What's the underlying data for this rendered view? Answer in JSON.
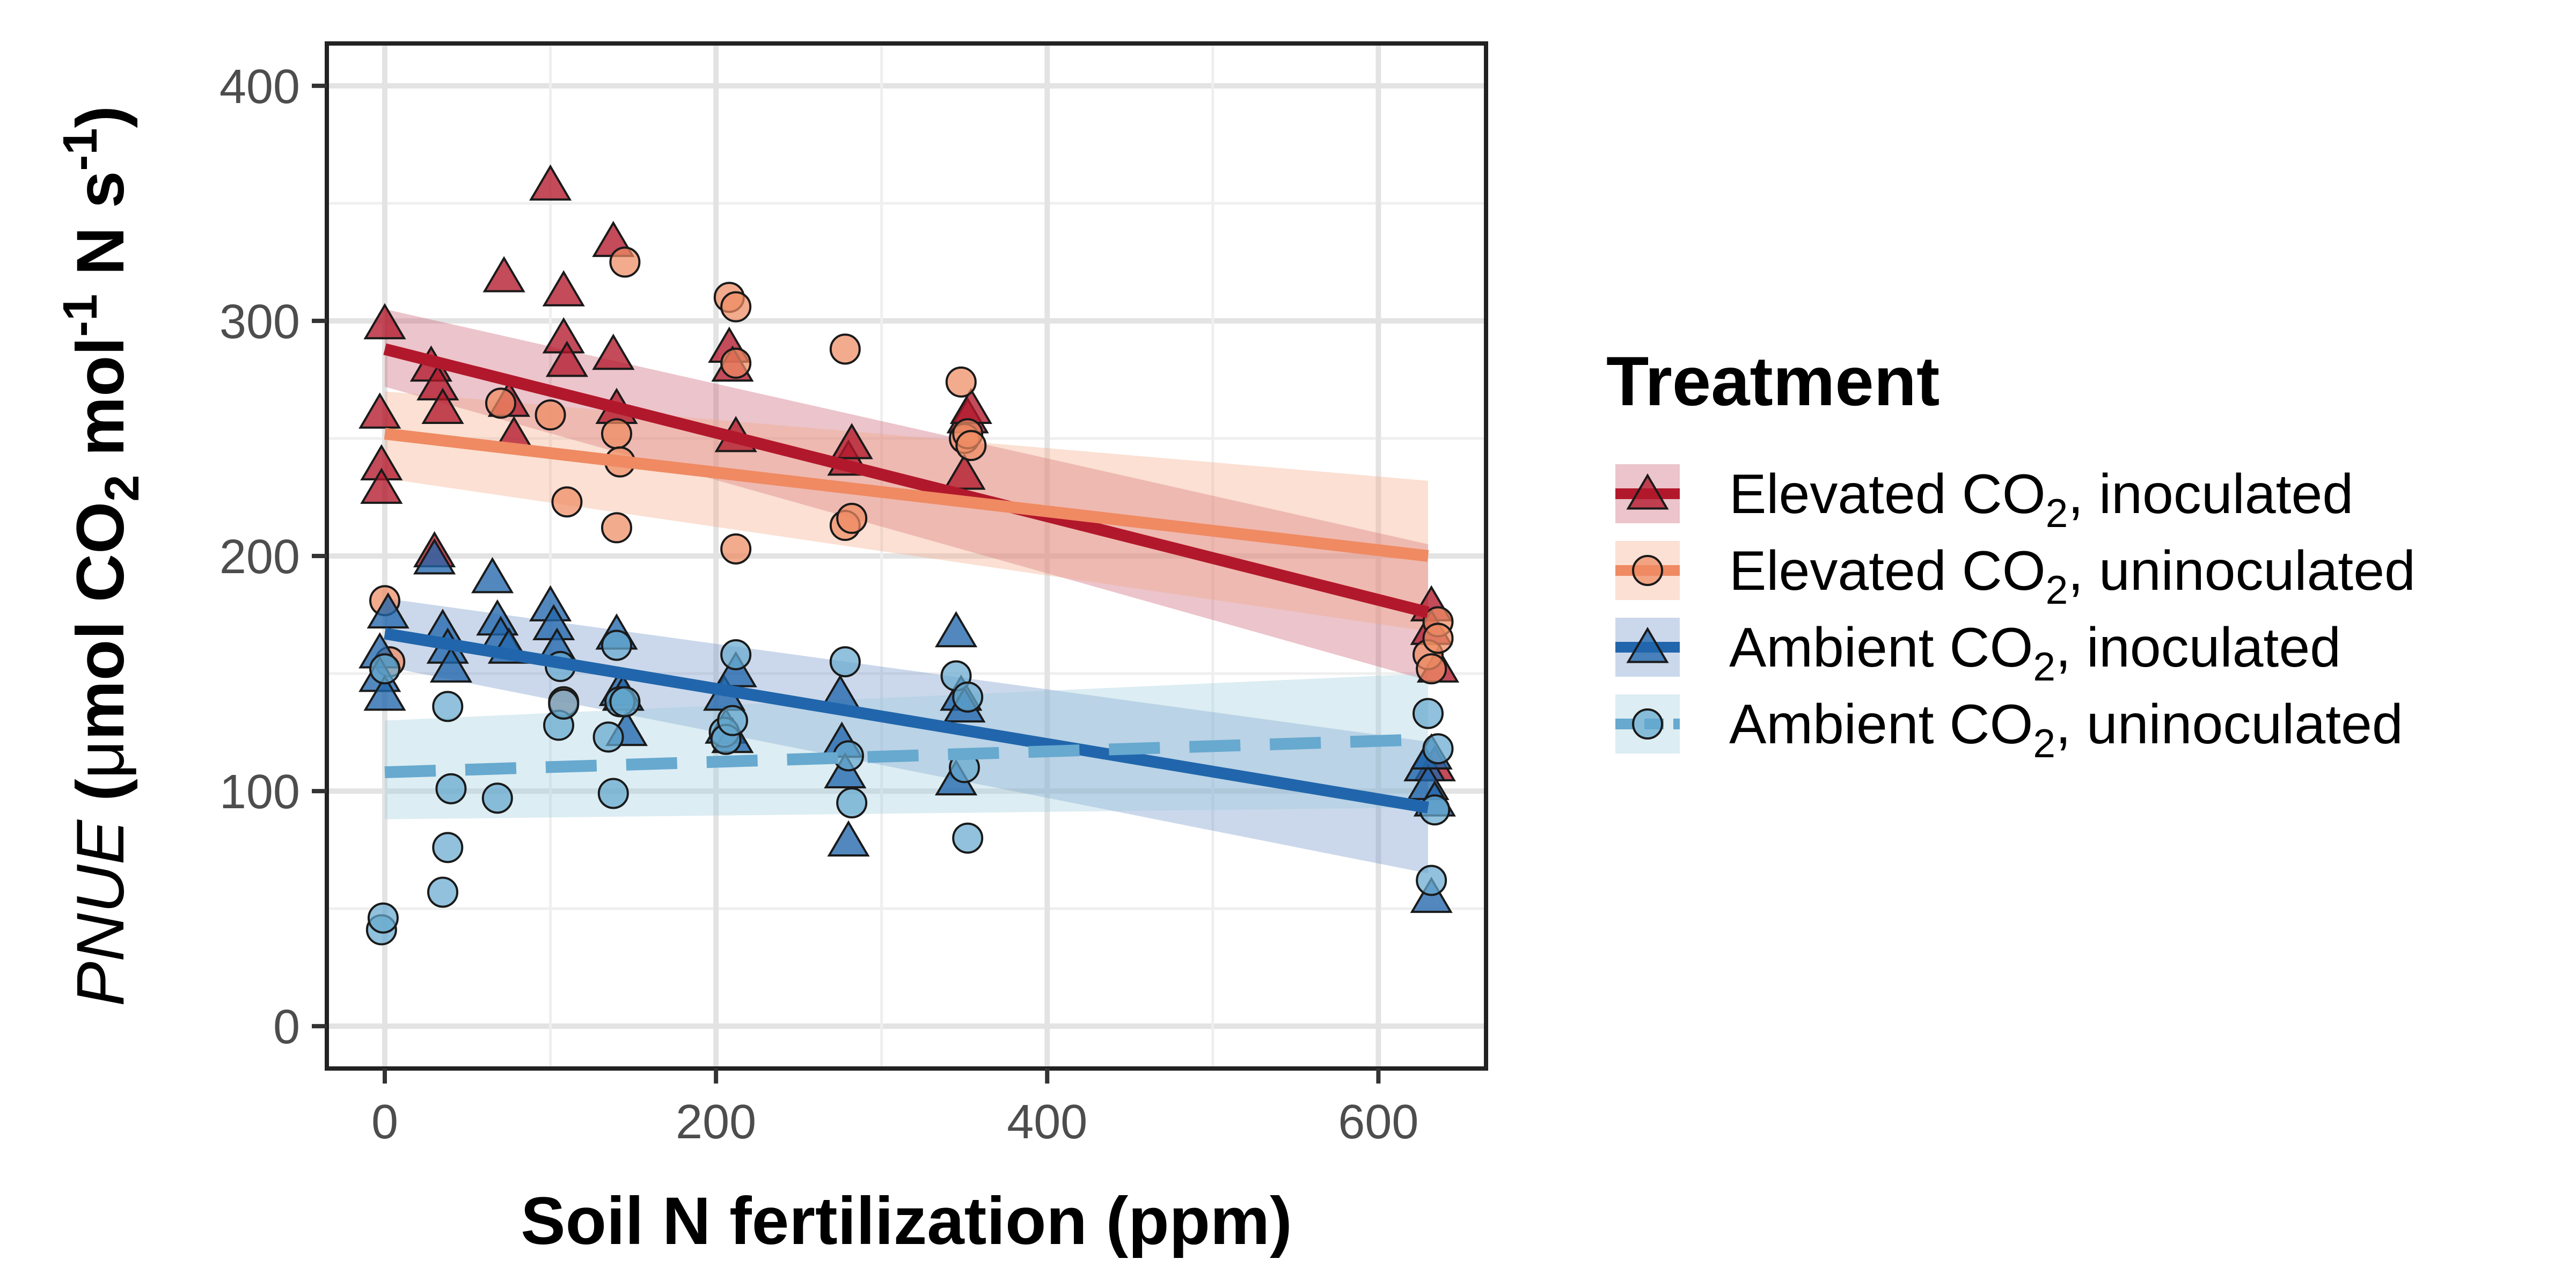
{
  "chart_data": {
    "type": "scatter",
    "xlabel": "Soil N fertilization (ppm)",
    "ylabel": {
      "italic": "PNUE",
      "open": "(",
      "mu": "μ",
      "mol": "mol CO",
      "sub": "2",
      "mol2": " mol",
      "sup1": "-1",
      "ns": " N s",
      "sup2": "-1",
      "close": ")"
    },
    "xlim": [
      -35,
      665
    ],
    "ylim": [
      -18,
      418
    ],
    "x_ticks": [
      0,
      200,
      400,
      600
    ],
    "x_tick_labels": [
      "0",
      "200",
      "400",
      "600"
    ],
    "y_ticks": [
      0,
      100,
      200,
      300,
      400
    ],
    "y_tick_labels": [
      "0",
      "100",
      "200",
      "300",
      "400"
    ],
    "grid": true,
    "legend": {
      "title": "Treatment",
      "position": "right",
      "entries": [
        {
          "pre": "Elevated CO",
          "sub": "2",
          "post": ", inoculated"
        },
        {
          "pre": "Elevated CO",
          "sub": "2",
          "post": ", uninoculated"
        },
        {
          "pre": "Ambient CO",
          "sub": "2",
          "post": ", inoculated"
        },
        {
          "pre": "Ambient CO",
          "sub": "2",
          "post": ", uninoculated"
        }
      ]
    },
    "series": [
      {
        "key": "eci",
        "shape": "triangle",
        "color": "#b2182b",
        "band_color": "#c9566a",
        "dashed": false,
        "fit": {
          "x": [
            0,
            630
          ],
          "y": [
            288,
            176
          ]
        },
        "band": {
          "x": [
            0,
            630
          ],
          "lo": [
            272,
            147
          ],
          "hi": [
            305,
            205
          ]
        },
        "points": [
          [
            0,
            298
          ],
          [
            -3,
            260
          ],
          [
            -2,
            238
          ],
          [
            -2,
            228
          ],
          [
            28,
            280
          ],
          [
            30,
            201
          ],
          [
            32,
            272
          ],
          [
            35,
            262
          ],
          [
            72,
            318
          ],
          [
            75,
            265
          ],
          [
            78,
            250
          ],
          [
            100,
            357
          ],
          [
            108,
            312
          ],
          [
            108,
            292
          ],
          [
            110,
            282
          ],
          [
            138,
            333
          ],
          [
            138,
            285
          ],
          [
            140,
            262
          ],
          [
            208,
            288
          ],
          [
            210,
            280
          ],
          [
            212,
            250
          ],
          [
            280,
            240
          ],
          [
            282,
            247
          ],
          [
            350,
            234
          ],
          [
            352,
            258
          ],
          [
            354,
            262
          ],
          [
            632,
            178
          ],
          [
            632,
            168
          ],
          [
            636,
            152
          ],
          [
            634,
            110
          ]
        ]
      },
      {
        "key": "ecu",
        "shape": "circle",
        "color": "#ef8a62",
        "band_color": "#f4a582",
        "dashed": false,
        "fit": {
          "x": [
            0,
            630
          ],
          "y": [
            252,
            200
          ]
        },
        "band": {
          "x": [
            0,
            630
          ],
          "lo": [
            233,
            168
          ],
          "hi": [
            270,
            232
          ]
        },
        "points": [
          [
            0,
            181
          ],
          [
            3,
            155
          ],
          [
            70,
            265
          ],
          [
            100,
            260
          ],
          [
            110,
            223
          ],
          [
            108,
            138
          ],
          [
            140,
            212
          ],
          [
            140,
            252
          ],
          [
            142,
            240
          ],
          [
            145,
            325
          ],
          [
            208,
            310
          ],
          [
            212,
            306
          ],
          [
            212,
            282
          ],
          [
            212,
            203
          ],
          [
            278,
            288
          ],
          [
            278,
            213
          ],
          [
            282,
            216
          ],
          [
            348,
            274
          ],
          [
            350,
            250
          ],
          [
            352,
            252
          ],
          [
            354,
            247
          ],
          [
            630,
            158
          ],
          [
            632,
            152
          ],
          [
            636,
            172
          ],
          [
            636,
            165
          ]
        ]
      },
      {
        "key": "aci",
        "shape": "triangle",
        "color": "#2166ac",
        "band_color": "#6a8fc7",
        "dashed": false,
        "fit": {
          "x": [
            0,
            630
          ],
          "y": [
            167,
            93
          ]
        },
        "band": {
          "x": [
            0,
            630
          ],
          "lo": [
            153,
            65
          ],
          "hi": [
            182,
            121
          ]
        },
        "points": [
          [
            -3,
            158
          ],
          [
            -3,
            148
          ],
          [
            0,
            140
          ],
          [
            2,
            175
          ],
          [
            30,
            198
          ],
          [
            35,
            168
          ],
          [
            38,
            160
          ],
          [
            40,
            152
          ],
          [
            65,
            190
          ],
          [
            68,
            172
          ],
          [
            70,
            165
          ],
          [
            75,
            160
          ],
          [
            100,
            178
          ],
          [
            102,
            170
          ],
          [
            104,
            160
          ],
          [
            140,
            166
          ],
          [
            142,
            142
          ],
          [
            144,
            140
          ],
          [
            146,
            125
          ],
          [
            205,
            140
          ],
          [
            206,
            126
          ],
          [
            210,
            122
          ],
          [
            212,
            150
          ],
          [
            275,
            140
          ],
          [
            276,
            120
          ],
          [
            278,
            107
          ],
          [
            280,
            78
          ],
          [
            345,
            167
          ],
          [
            348,
            140
          ],
          [
            350,
            135
          ],
          [
            345,
            104
          ],
          [
            628,
            110
          ],
          [
            630,
            102
          ],
          [
            632,
            54
          ],
          [
            634,
            95
          ],
          [
            632,
            115
          ]
        ]
      },
      {
        "key": "acu",
        "shape": "circle",
        "color": "#67a9cf",
        "band_color": "#9ccbdc",
        "dashed": true,
        "fit": {
          "x": [
            0,
            630
          ],
          "y": [
            108,
            122
          ]
        },
        "band": {
          "x": [
            0,
            630
          ],
          "lo": [
            88,
            93
          ],
          "hi": [
            130,
            150
          ]
        },
        "points": [
          [
            -2,
            41
          ],
          [
            -1,
            46
          ],
          [
            0,
            152
          ],
          [
            35,
            57
          ],
          [
            38,
            136
          ],
          [
            38,
            76
          ],
          [
            40,
            101
          ],
          [
            68,
            97
          ],
          [
            105,
            128
          ],
          [
            106,
            153
          ],
          [
            108,
            137
          ],
          [
            135,
            123
          ],
          [
            138,
            99
          ],
          [
            140,
            162
          ],
          [
            142,
            138
          ],
          [
            145,
            138
          ],
          [
            205,
            125
          ],
          [
            206,
            122
          ],
          [
            210,
            130
          ],
          [
            212,
            158
          ],
          [
            278,
            155
          ],
          [
            280,
            115
          ],
          [
            282,
            95
          ],
          [
            345,
            149
          ],
          [
            350,
            110
          ],
          [
            352,
            140
          ],
          [
            352,
            80
          ],
          [
            630,
            133
          ],
          [
            632,
            62
          ],
          [
            634,
            92
          ],
          [
            636,
            118
          ]
        ]
      }
    ]
  }
}
